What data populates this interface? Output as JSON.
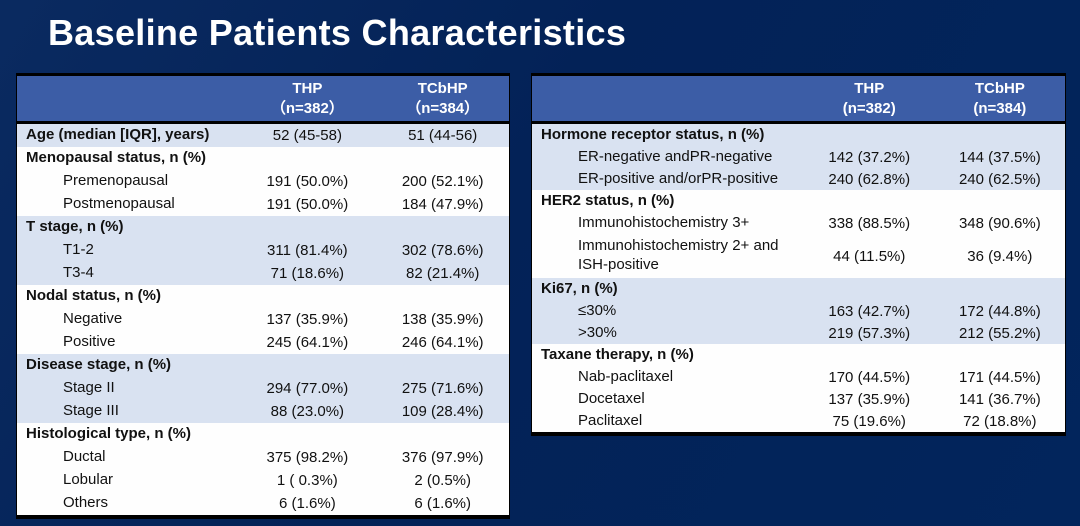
{
  "title": "Baseline Patients Characteristics",
  "colors": {
    "background_navy": "#032257",
    "header_blue": "#3c5da6",
    "row_light_blue": "#d9e2f1",
    "row_white": "#fefefe",
    "border_black": "#000000",
    "title_text": "#ffffff",
    "body_text": "#111111"
  },
  "left_table": {
    "header": {
      "thp_name": "THP",
      "thp_n": "（n=382）",
      "tcbhp_name": "TCbHP",
      "tcbhp_n": "（n=384）"
    },
    "sections": [
      {
        "shade": "light",
        "rows": [
          {
            "label": "Age (median [IQR], years)",
            "thp": "52 (45-58)",
            "tcbhp": "51 (44-56)"
          }
        ]
      },
      {
        "shade": "white",
        "rows": [
          {
            "label": "Menopausal status, n (%)",
            "thp": "",
            "tcbhp": ""
          },
          {
            "label": "Premenopausal",
            "thp": "191 (50.0%)",
            "tcbhp": "200 (52.1%)"
          },
          {
            "label": "Postmenopausal",
            "thp": "191 (50.0%)",
            "tcbhp": "184 (47.9%)"
          }
        ]
      },
      {
        "shade": "light",
        "rows": [
          {
            "label": "T stage, n (%)",
            "thp": "",
            "tcbhp": ""
          },
          {
            "label": "T1-2",
            "thp": "311 (81.4%)",
            "tcbhp": "302 (78.6%)"
          },
          {
            "label": "T3-4",
            "thp": "71 (18.6%)",
            "tcbhp": "82 (21.4%)"
          }
        ]
      },
      {
        "shade": "white",
        "rows": [
          {
            "label": "Nodal status, n (%)",
            "thp": "",
            "tcbhp": ""
          },
          {
            "label": "Negative",
            "thp": "137 (35.9%)",
            "tcbhp": "138 (35.9%)"
          },
          {
            "label": "Positive",
            "thp": "245 (64.1%)",
            "tcbhp": "246 (64.1%)"
          }
        ]
      },
      {
        "shade": "light",
        "rows": [
          {
            "label": "Disease stage, n (%)",
            "thp": "",
            "tcbhp": ""
          },
          {
            "label": "Stage II",
            "thp": "294 (77.0%)",
            "tcbhp": "275 (71.6%)"
          },
          {
            "label": "Stage III",
            "thp": "88 (23.0%)",
            "tcbhp": "109 (28.4%)"
          }
        ]
      },
      {
        "shade": "white",
        "rows": [
          {
            "label": "Histological type, n (%)",
            "thp": "",
            "tcbhp": ""
          },
          {
            "label": "Ductal",
            "thp": "375 (98.2%)",
            "tcbhp": "376 (97.9%)"
          },
          {
            "label": "Lobular",
            "thp": "1 ( 0.3%)",
            "tcbhp": "2 (0.5%)"
          },
          {
            "label": "Others",
            "thp": "6 (1.6%)",
            "tcbhp": "6 (1.6%)"
          }
        ]
      }
    ]
  },
  "right_table": {
    "header": {
      "thp_name": "THP",
      "thp_n": "(n=382)",
      "tcbhp_name": "TCbHP",
      "tcbhp_n": "(n=384)"
    },
    "sections": [
      {
        "shade": "light",
        "rows": [
          {
            "label": "Hormone receptor status, n (%)",
            "thp": "",
            "tcbhp": ""
          },
          {
            "label": "ER-negative andPR-negative",
            "thp": "142 (37.2%)",
            "tcbhp": "144 (37.5%)"
          },
          {
            "label": "ER-positive and/orPR-positive",
            "thp": "240 (62.8%)",
            "tcbhp": "240 (62.5%)"
          }
        ]
      },
      {
        "shade": "white",
        "rows": [
          {
            "label": "HER2 status, n (%)",
            "thp": "",
            "tcbhp": ""
          },
          {
            "label": "Immunohistochemistry 3+",
            "thp": "338 (88.5%)",
            "tcbhp": "348 (90.6%)"
          },
          {
            "label": "Immunohistochemistry 2+ and\nISH-positive",
            "thp": "44 (11.5%)",
            "tcbhp": "36 (9.4%)"
          }
        ]
      },
      {
        "shade": "light",
        "rows": [
          {
            "label": "Ki67, n (%)",
            "thp": "",
            "tcbhp": ""
          },
          {
            "label": "≤30%",
            "thp": "163 (42.7%)",
            "tcbhp": "172 (44.8%)"
          },
          {
            "label": ">30%",
            "thp": "219 (57.3%)",
            "tcbhp": "212 (55.2%)"
          }
        ]
      },
      {
        "shade": "white",
        "rows": [
          {
            "label": "Taxane therapy, n (%)",
            "thp": "",
            "tcbhp": ""
          },
          {
            "label": "Nab-paclitaxel",
            "thp": "170 (44.5%)",
            "tcbhp": "171 (44.5%)"
          },
          {
            "label": "Docetaxel",
            "thp": "137 (35.9%)",
            "tcbhp": "141 (36.7%)"
          },
          {
            "label": "Paclitaxel",
            "thp": "75 (19.6%)",
            "tcbhp": "72 (18.8%)"
          }
        ]
      }
    ]
  }
}
